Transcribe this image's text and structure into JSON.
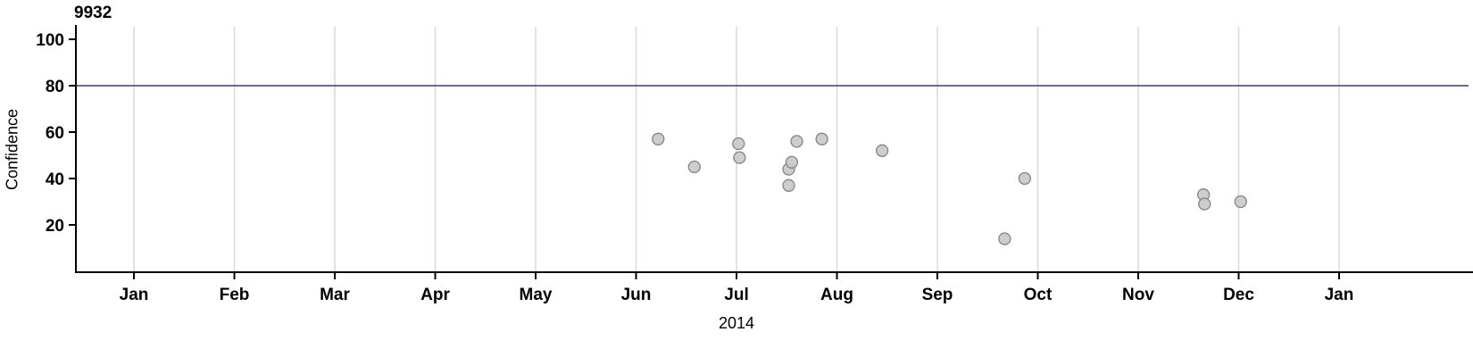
{
  "chart_data": {
    "type": "scatter",
    "title": "9932",
    "xlabel": "2014",
    "ylabel": "Confidence",
    "x_tick_labels": [
      "Jan",
      "Feb",
      "Mar",
      "Apr",
      "May",
      "Jun",
      "Jul",
      "Aug",
      "Sep",
      "Oct",
      "Nov",
      "Dec",
      "Jan"
    ],
    "x_tick_positions": [
      0,
      1,
      2,
      3,
      4,
      5,
      6,
      7,
      8,
      9,
      10,
      11,
      12
    ],
    "y_ticks": [
      20,
      40,
      60,
      80,
      100
    ],
    "x_range": [
      -0.578,
      13.289
    ],
    "y_range": [
      -0.4,
      105.4
    ],
    "grid": {
      "vertical": true,
      "horizontal": false,
      "color": "#d8d8d8"
    },
    "reference_line": {
      "y": 80,
      "color": "#3c3c78"
    },
    "point_style": {
      "fill": "#c9c9c9",
      "stroke": "#848484",
      "radius": 6.5
    },
    "points": [
      {
        "date": "2014-06-07",
        "x": 5.22,
        "y": 57
      },
      {
        "date": "2014-06-17",
        "x": 5.58,
        "y": 45
      },
      {
        "date": "2014-07-01",
        "x": 6.02,
        "y": 55
      },
      {
        "date": "2014-07-01",
        "x": 6.03,
        "y": 49
      },
      {
        "date": "2014-07-16",
        "x": 6.52,
        "y": 44
      },
      {
        "date": "2014-07-16",
        "x": 6.52,
        "y": 37
      },
      {
        "date": "2014-07-17",
        "x": 6.55,
        "y": 47
      },
      {
        "date": "2014-07-19",
        "x": 6.6,
        "y": 56
      },
      {
        "date": "2014-07-26",
        "x": 6.85,
        "y": 57
      },
      {
        "date": "2014-08-14",
        "x": 7.45,
        "y": 52
      },
      {
        "date": "2014-09-21",
        "x": 8.67,
        "y": 14
      },
      {
        "date": "2014-09-27",
        "x": 8.87,
        "y": 40
      },
      {
        "date": "2014-11-20",
        "x": 10.65,
        "y": 33
      },
      {
        "date": "2014-11-20",
        "x": 10.66,
        "y": 29
      },
      {
        "date": "2014-12-02",
        "x": 11.02,
        "y": 30
      }
    ]
  }
}
